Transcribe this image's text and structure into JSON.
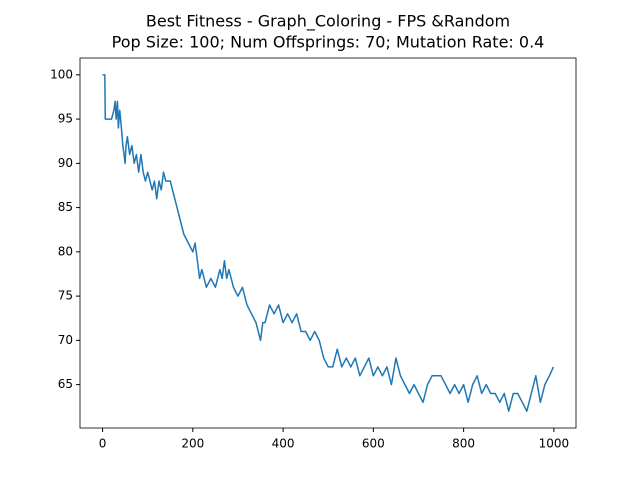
{
  "chart_data": {
    "type": "line",
    "title": "Best Fitness - Graph_Coloring - FPS &Random",
    "subtitle": "Pop Size: 100; Num Offsprings: 70; Mutation Rate: 0.4",
    "x": [
      0,
      5,
      6,
      20,
      25,
      28,
      30,
      33,
      35,
      38,
      40,
      45,
      50,
      52,
      55,
      60,
      65,
      70,
      75,
      80,
      85,
      90,
      95,
      100,
      110,
      115,
      120,
      125,
      130,
      135,
      140,
      150,
      160,
      165,
      170,
      175,
      180,
      190,
      200,
      205,
      210,
      215,
      220,
      230,
      240,
      250,
      260,
      265,
      270,
      275,
      280,
      290,
      300,
      310,
      320,
      330,
      340,
      345,
      350,
      355,
      360,
      370,
      380,
      390,
      400,
      410,
      420,
      430,
      440,
      450,
      460,
      470,
      480,
      490,
      500,
      510,
      520,
      530,
      540,
      550,
      560,
      570,
      580,
      590,
      600,
      610,
      620,
      630,
      640,
      650,
      660,
      670,
      680,
      690,
      700,
      710,
      720,
      730,
      740,
      750,
      760,
      770,
      780,
      790,
      800,
      810,
      820,
      830,
      840,
      850,
      860,
      870,
      880,
      890,
      900,
      910,
      920,
      930,
      940,
      950,
      960,
      970,
      980,
      990,
      999
    ],
    "series": [
      {
        "name": "Best Fitness",
        "color": "#1f77b4",
        "values": [
          100,
          100,
          95,
          95,
          96,
          97,
          95,
          97,
          94,
          96,
          95,
          92,
          90,
          92,
          93,
          91,
          92,
          90,
          91,
          89,
          91,
          89,
          88,
          89,
          87,
          88,
          86,
          88,
          87,
          89,
          88,
          88,
          86,
          85,
          84,
          83,
          82,
          81,
          80,
          81,
          79,
          77,
          78,
          76,
          77,
          76,
          78,
          77,
          79,
          77,
          78,
          76,
          75,
          76,
          74,
          73,
          72,
          71,
          70,
          72,
          72,
          74,
          73,
          74,
          72,
          73,
          72,
          73,
          71,
          71,
          70,
          71,
          70,
          68,
          67,
          67,
          69,
          67,
          68,
          67,
          68,
          66,
          67,
          68,
          66,
          67,
          66,
          67,
          65,
          68,
          66,
          65,
          64,
          65,
          64,
          63,
          65,
          66,
          66,
          66,
          65,
          64,
          65,
          64,
          65,
          63,
          65,
          66,
          64,
          65,
          64,
          64,
          63,
          64,
          62,
          64,
          64,
          63,
          62,
          64,
          66,
          63,
          65,
          66,
          67
        ]
      }
    ],
    "xlim": [
      -50,
      1049
    ],
    "ylim": [
      60.1,
      101.9
    ],
    "xticks": [
      0,
      200,
      400,
      600,
      800,
      1000
    ],
    "yticks": [
      65,
      70,
      75,
      80,
      85,
      90,
      95,
      100
    ]
  }
}
